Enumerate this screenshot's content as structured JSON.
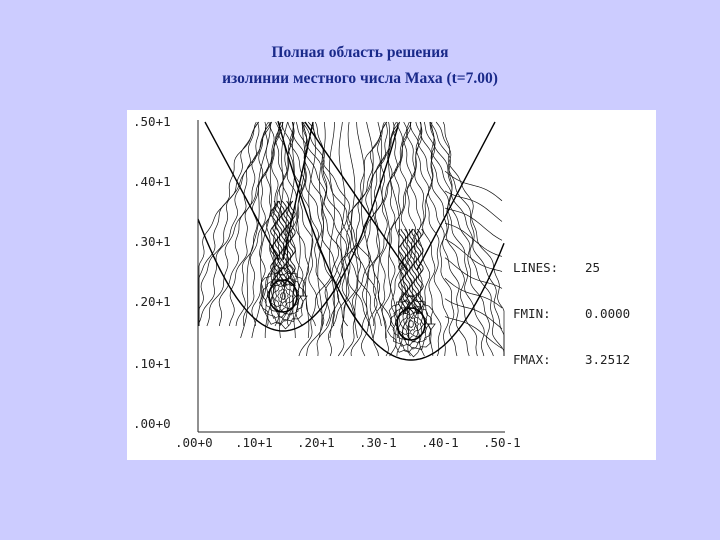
{
  "slide": {
    "title_line1": "Полная область решения",
    "title_line2": "изолинии местного числа Маха (t=7.00)"
  },
  "plot": {
    "y_ticks": [
      ".50+1",
      ".40+1",
      ".30+1",
      ".20+1",
      ".10+1",
      ".00+0"
    ],
    "x_ticks": [
      ".00+0",
      ".10+1",
      ".20+1",
      ".30-1",
      ".40-1",
      ".50-1"
    ],
    "info": [
      {
        "key": "LINES:",
        "value": "25"
      },
      {
        "key": "FMIN:",
        "value": "0.0000"
      },
      {
        "key": "FMAX:",
        "value": "3.2512"
      }
    ],
    "contour_count": 25,
    "fmin": 0.0,
    "fmax": 3.2512
  }
}
